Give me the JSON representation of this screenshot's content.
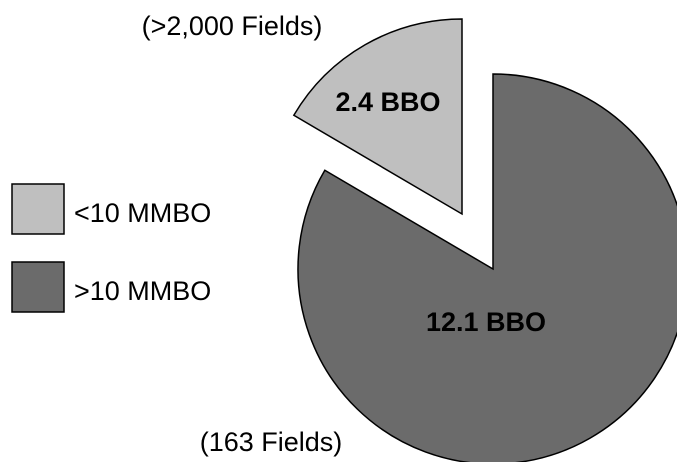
{
  "chart_data": {
    "type": "pie",
    "slices": [
      {
        "legend": "<10 MMBO",
        "value": 2.4,
        "value_label": "2.4 BBO",
        "note": "(>2,000 Fields)",
        "color": "#bfbfbf",
        "exploded": true
      },
      {
        "legend": ">10 MMBO",
        "value": 12.1,
        "value_label": "12.1 BBO",
        "note": "(163 Fields)",
        "color": "#6b6b6b",
        "exploded": false
      }
    ],
    "legend_placement": "left",
    "start_angle_deg": 0,
    "direction": "counterclockwise"
  }
}
